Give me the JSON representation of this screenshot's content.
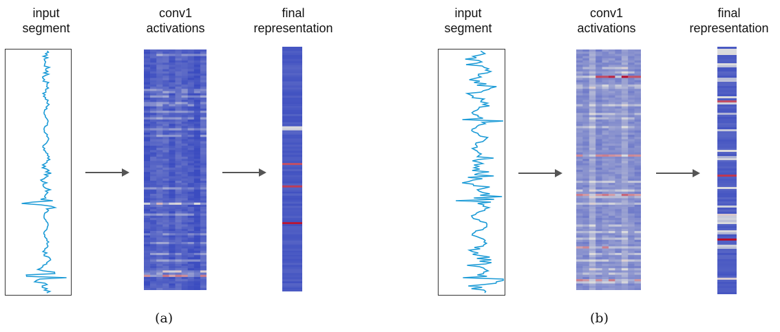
{
  "panels": [
    {
      "caption": "(a)",
      "labels": {
        "input": [
          "input",
          "segment"
        ],
        "conv": [
          "conv1",
          "activations"
        ],
        "final": [
          "final",
          "representation"
        ]
      }
    },
    {
      "caption": "(b)",
      "labels": {
        "input": [
          "input",
          "segment"
        ],
        "conv": [
          "conv1",
          "activations"
        ],
        "final": [
          "final",
          "representation"
        ]
      }
    }
  ],
  "colors": {
    "signal": "#1a9ad6",
    "heat_low": "#3b4cc0",
    "heat_mid": "#dddddd",
    "heat_high": "#b40426",
    "arrow": "#555555",
    "box_border": "#333333"
  }
}
